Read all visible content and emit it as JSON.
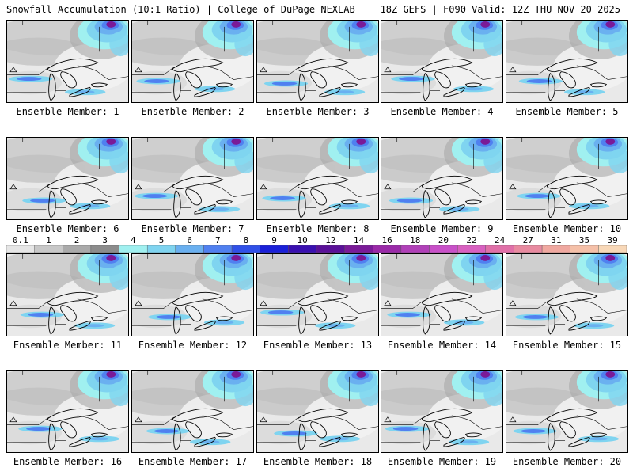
{
  "header": {
    "title": "Snowfall Accumulation (10:1 Ratio) | College of DuPage NEXLAB",
    "run_info": "18Z GEFS | F090 Valid: 12Z THU NOV 20 2025"
  },
  "legend": {
    "values": [
      "0.1",
      "1",
      "2",
      "3",
      "4",
      "5",
      "6",
      "7",
      "8",
      "9",
      "10",
      "12",
      "14",
      "16",
      "18",
      "20",
      "22",
      "24",
      "27",
      "31",
      "35",
      "39"
    ],
    "colors": [
      "#e6e6e6",
      "#c8c8c8",
      "#aaaaaa",
      "#8c8c8c",
      "#a0f0f0",
      "#7fd4f0",
      "#6ab0f0",
      "#5080f0",
      "#3050e8",
      "#1a20d8",
      "#3a10b0",
      "#5a1098",
      "#7a1a98",
      "#9a2aa8",
      "#b040b8",
      "#c850c8",
      "#d860c0",
      "#e070a8",
      "#e88aa0",
      "#f0a8a0",
      "#f5c0a8",
      "#f8d8b8"
    ]
  },
  "panels": [
    {
      "label": "Ensemble Member: 1"
    },
    {
      "label": "Ensemble Member: 2"
    },
    {
      "label": "Ensemble Member: 3"
    },
    {
      "label": "Ensemble Member: 4"
    },
    {
      "label": "Ensemble Member: 5"
    },
    {
      "label": "Ensemble Member: 6"
    },
    {
      "label": "Ensemble Member: 7"
    },
    {
      "label": "Ensemble Member: 8"
    },
    {
      "label": "Ensemble Member: 9"
    },
    {
      "label": "Ensemble Member: 10"
    },
    {
      "label": "Ensemble Member: 11"
    },
    {
      "label": "Ensemble Member: 12"
    },
    {
      "label": "Ensemble Member: 13"
    },
    {
      "label": "Ensemble Member: 14"
    },
    {
      "label": "Ensemble Member: 15"
    },
    {
      "label": "Ensemble Member: 16"
    },
    {
      "label": "Ensemble Member: 17"
    },
    {
      "label": "Ensemble Member: 18"
    },
    {
      "label": "Ensemble Member: 19"
    },
    {
      "label": "Ensemble Member: 20"
    }
  ]
}
